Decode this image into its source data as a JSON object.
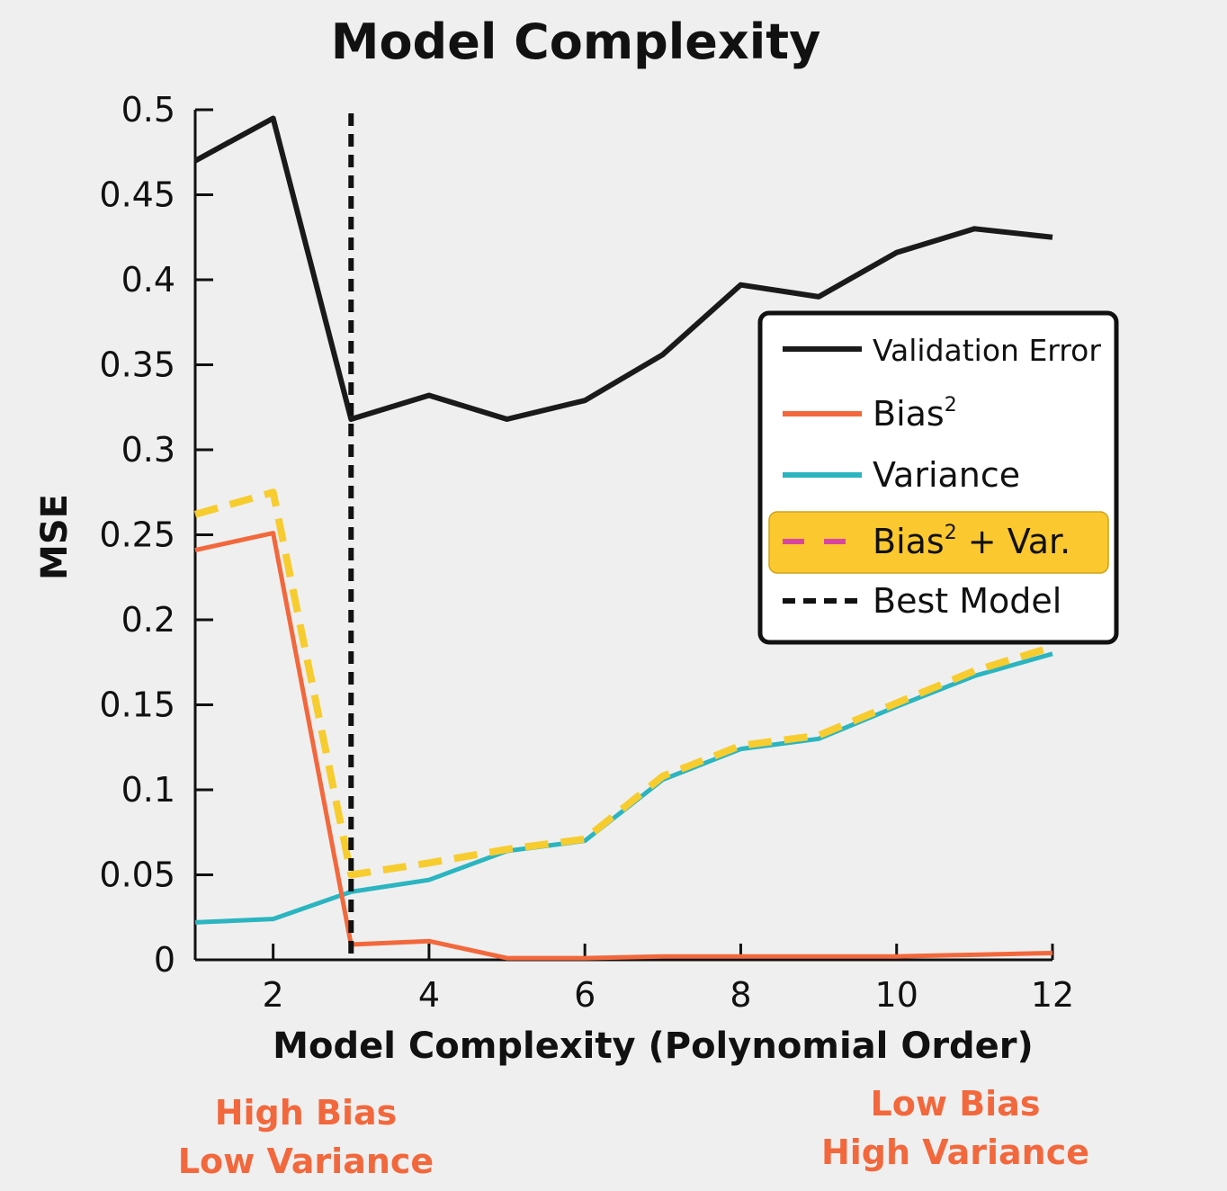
{
  "chart_data": {
    "type": "line",
    "title": "Model Complexity",
    "xlabel": "Model Complexity (Polynomial Order)",
    "ylabel": "MSE",
    "xlim": [
      1,
      12
    ],
    "ylim": [
      0,
      0.5
    ],
    "xticks": [
      2,
      4,
      6,
      8,
      10,
      12
    ],
    "yticks": [
      0,
      0.05,
      0.1,
      0.15,
      0.2,
      0.25,
      0.3,
      0.35,
      0.4,
      0.45,
      0.5
    ],
    "ytick_labels": [
      "0",
      "0.05",
      "0.1",
      "0.15",
      "0.2",
      "0.25",
      "0.3",
      "0.35",
      "0.4",
      "0.45",
      "0.5"
    ],
    "x": [
      1,
      2,
      3,
      4,
      5,
      6,
      7,
      8,
      9,
      10,
      11,
      12
    ],
    "series": [
      {
        "name": "Validation Error",
        "color": "#1a1a1a",
        "style": "solid",
        "values": [
          0.47,
          0.495,
          0.318,
          0.332,
          0.318,
          0.329,
          0.356,
          0.397,
          0.39,
          0.416,
          0.43,
          0.425
        ]
      },
      {
        "name": "Bias",
        "color": "#f2683c",
        "style": "solid",
        "values": [
          0.241,
          0.251,
          0.009,
          0.011,
          0.001,
          0.001,
          0.002,
          0.002,
          0.002,
          0.002,
          0.003,
          0.004
        ]
      },
      {
        "name": "Variance",
        "color": "#2bb5c0",
        "style": "solid",
        "values": [
          0.022,
          0.024,
          0.04,
          0.047,
          0.064,
          0.07,
          0.106,
          0.124,
          0.13,
          0.149,
          0.167,
          0.18
        ]
      },
      {
        "name": "Bias + Var.",
        "color": "#f7cc2e",
        "style": "dashed",
        "values": [
          0.262,
          0.275,
          0.05,
          0.057,
          0.065,
          0.071,
          0.108,
          0.126,
          0.132,
          0.151,
          0.17,
          0.184
        ]
      }
    ],
    "best_model_x": 3,
    "legend": {
      "placement": "right",
      "entries": [
        {
          "label": "Validation Error",
          "color": "#1a1a1a",
          "style": "solid",
          "sup": ""
        },
        {
          "label": "Bias",
          "color": "#f2683c",
          "style": "solid",
          "sup": "2"
        },
        {
          "label": "Variance",
          "color": "#2bb5c0",
          "style": "solid",
          "sup": ""
        },
        {
          "label_pre": "Bias",
          "sup": "2",
          "label_post": " + Var.",
          "color": "#d946a0",
          "style": "dashed",
          "highlight": "#fbc82f"
        },
        {
          "label": "Best Model",
          "color": "#111111",
          "style": "dotted",
          "sup": ""
        }
      ]
    },
    "annotations": [
      {
        "lines": [
          "High Bias",
          "Low Variance"
        ],
        "position": "bottom-left",
        "color": "#f2683c"
      },
      {
        "lines": [
          "Low Bias",
          "High Variance"
        ],
        "position": "bottom-right",
        "color": "#f2683c"
      }
    ]
  }
}
